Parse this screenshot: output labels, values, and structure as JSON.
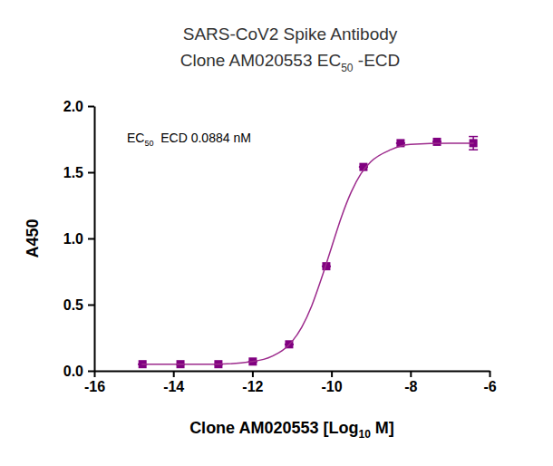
{
  "chart_data": {
    "type": "scatter",
    "title": [
      "SARS-CoV2 Spike Antibody",
      [
        "Clone AM020553 EC",
        "50",
        " -ECD"
      ]
    ],
    "annotation": [
      "EC",
      "50",
      "  ECD 0.0884 nM"
    ],
    "x_label": [
      "Clone AM020553 [Log",
      "10",
      " M]"
    ],
    "y_label": "A450",
    "xlim": [
      -16,
      -6
    ],
    "xticks": [
      -16,
      -14,
      -12,
      -10,
      -8,
      -6
    ],
    "ylim": [
      0,
      2
    ],
    "yticks": [
      {
        "value": 0,
        "label": "0.0"
      },
      {
        "value": 0.5,
        "label": "0.5"
      },
      {
        "value": 1,
        "label": "1.0"
      },
      {
        "value": 1.5,
        "label": "1.5"
      },
      {
        "value": 2,
        "label": "2.0"
      }
    ],
    "grid": false,
    "series": [
      {
        "type": "scatter",
        "marker": "square",
        "color": "#800080",
        "x": [
          -14.78,
          -13.82,
          -12.86,
          -11.99,
          -11.07,
          -10.13,
          -9.19,
          -8.25,
          -7.33,
          -6.41
        ],
        "values": [
          0.05,
          0.05,
          0.05,
          0.07,
          0.2,
          0.79,
          1.54,
          1.72,
          1.73,
          1.72
        ],
        "errors": [
          0,
          0,
          0,
          0,
          0,
          0,
          0,
          0,
          0,
          0.05
        ]
      },
      {
        "type": "line",
        "line_style": "solid",
        "color": "#9c2a8c",
        "x": [
          -14.8,
          -13,
          -12,
          -11.5,
          -11,
          -10.75,
          -10.5,
          -10.25,
          -10,
          -9.75,
          -9.5,
          -9.25,
          -9,
          -8.5,
          -8,
          -7,
          -6.4
        ],
        "values": [
          0.05,
          0.05,
          0.07,
          0.11,
          0.22,
          0.33,
          0.49,
          0.7,
          0.93,
          1.16,
          1.35,
          1.49,
          1.58,
          1.67,
          1.71,
          1.72,
          1.72
        ]
      }
    ]
  }
}
